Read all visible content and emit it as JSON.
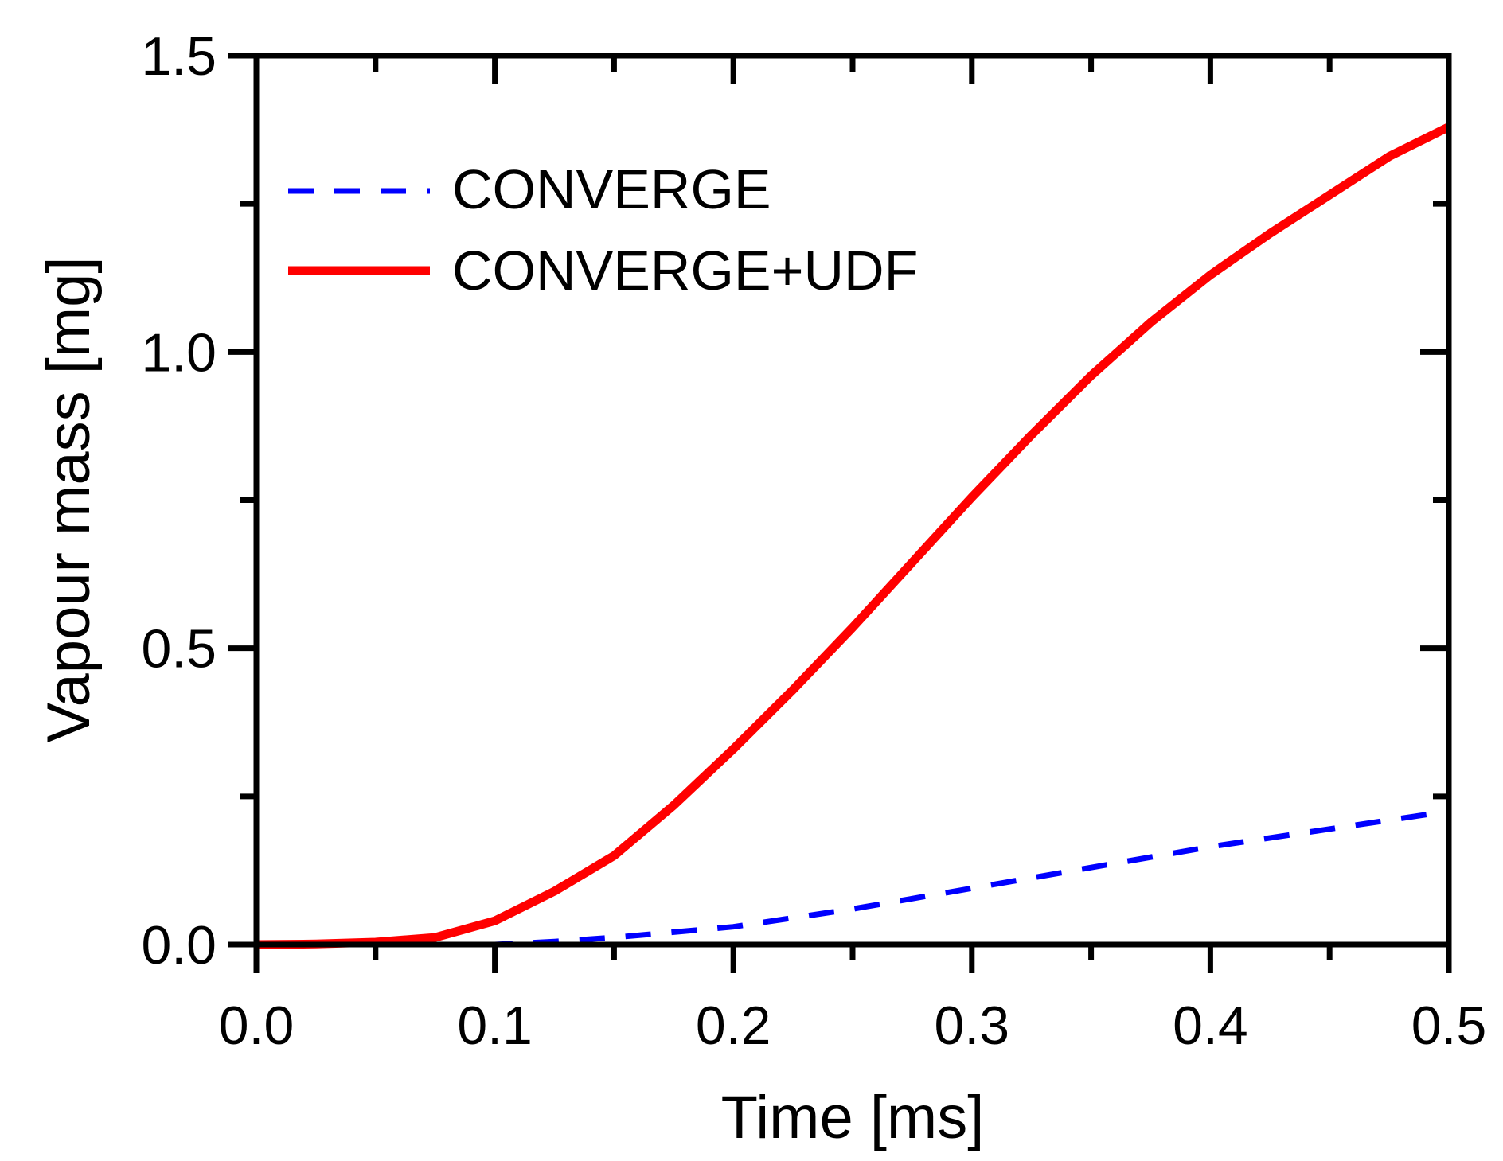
{
  "chart_data": {
    "type": "line",
    "title": "",
    "xlabel": "Time [ms]",
    "ylabel": "Vapour mass [mg]",
    "xlim": [
      0.0,
      0.5
    ],
    "ylim": [
      0.0,
      1.5
    ],
    "x_ticks": [
      0.0,
      0.1,
      0.2,
      0.3,
      0.4,
      0.5
    ],
    "x_tick_labels": [
      "0.0",
      "0.1",
      "0.2",
      "0.3",
      "0.4",
      "0.5"
    ],
    "y_ticks": [
      0.0,
      0.5,
      1.0,
      1.5
    ],
    "y_tick_labels": [
      "0.0",
      "0.5",
      "1.0",
      "1.5"
    ],
    "grid": false,
    "legend_position": "top-left",
    "series": [
      {
        "name": "CONVERGE",
        "color": "#0000ff",
        "style": "dashed",
        "x": [
          0.0,
          0.05,
          0.1,
          0.125,
          0.15,
          0.2,
          0.25,
          0.3,
          0.35,
          0.4,
          0.45,
          0.5
        ],
        "y": [
          0.0,
          0.0,
          0.0,
          0.005,
          0.012,
          0.03,
          0.06,
          0.095,
          0.13,
          0.165,
          0.195,
          0.225
        ]
      },
      {
        "name": "CONVERGE+UDF",
        "color": "#ff0000",
        "style": "solid",
        "x": [
          0.0,
          0.025,
          0.05,
          0.075,
          0.1,
          0.125,
          0.15,
          0.175,
          0.2,
          0.225,
          0.25,
          0.275,
          0.3,
          0.325,
          0.35,
          0.375,
          0.4,
          0.425,
          0.45,
          0.475,
          0.5
        ],
        "y": [
          0.0,
          0.001,
          0.004,
          0.012,
          0.04,
          0.09,
          0.15,
          0.235,
          0.33,
          0.43,
          0.535,
          0.645,
          0.755,
          0.86,
          0.96,
          1.05,
          1.13,
          1.2,
          1.265,
          1.33,
          1.38
        ]
      }
    ]
  }
}
